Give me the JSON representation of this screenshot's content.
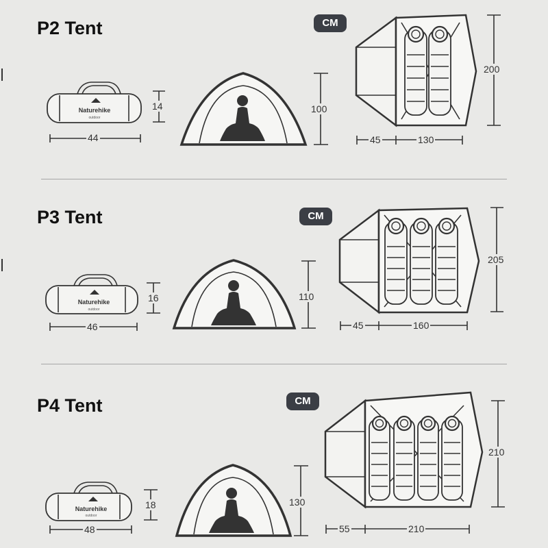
{
  "unit_label": "CM",
  "tents": [
    {
      "title": "P2 Tent",
      "bag": {
        "brand": "Naturehike",
        "sub": "outdoor",
        "length": "44",
        "diameter": "14"
      },
      "height": "100",
      "floor": {
        "vestibule": "45",
        "width": "130",
        "length": "200"
      },
      "sleeping_bags": 2
    },
    {
      "title": "P3 Tent",
      "bag": {
        "brand": "Naturehike",
        "sub": "outdoor",
        "length": "46",
        "diameter": "16"
      },
      "height": "110",
      "floor": {
        "vestibule": "45",
        "width": "160",
        "length": "205"
      },
      "sleeping_bags": 3
    },
    {
      "title": "P4 Tent",
      "bag": {
        "brand": "Naturehike",
        "sub": "outdoor",
        "length": "48",
        "diameter": "18"
      },
      "height": "130",
      "floor": {
        "vestibule": "55",
        "width": "210",
        "length": "210"
      },
      "sleeping_bags": 4
    }
  ]
}
